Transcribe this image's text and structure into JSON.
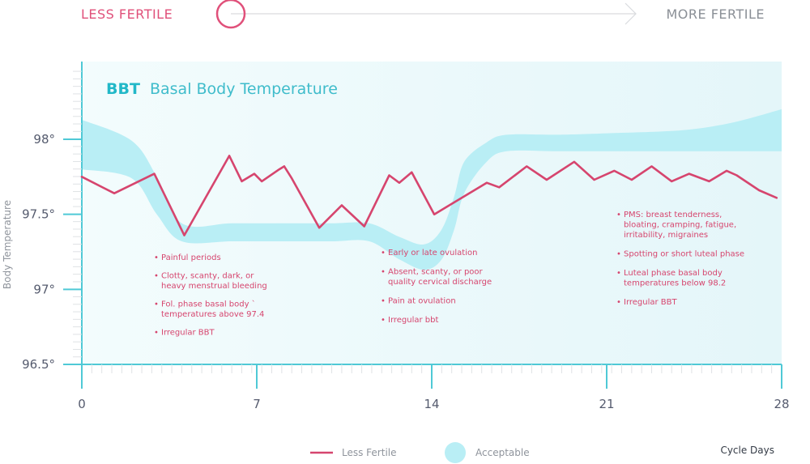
{
  "scale": {
    "left_label": "LESS FERTILE",
    "right_label": "MORE FERTILE",
    "indicator_position": 0.0,
    "left_color": "#e0507a",
    "right_color": "#8a8f96"
  },
  "chart_data": {
    "type": "line",
    "title_abbr": "BBT",
    "title": "Basal Body Temperature",
    "xlabel": "Cycle Days",
    "ylabel": "Body Temperature",
    "xlim": [
      0,
      28
    ],
    "ylim": [
      96.5,
      98.5
    ],
    "x_ticks": [
      0,
      7,
      14,
      21,
      28
    ],
    "x_tick_labels": [
      "0",
      "7",
      "14",
      "21",
      "28"
    ],
    "y_ticks": [
      96.5,
      97,
      97.5,
      98
    ],
    "y_tick_labels": [
      "96.5°",
      "97°",
      "97.5°",
      "98°"
    ],
    "series": [
      {
        "name": "Less Fertile",
        "kind": "line",
        "color": "#d6456e",
        "x": [
          0,
          1.3,
          2.9,
          4.1,
          5.9,
          6.4,
          6.9,
          7.2,
          7.9,
          8.1,
          8.4,
          9.5,
          10.4,
          11.3,
          12.3,
          12.7,
          13.2,
          14.1,
          16.2,
          16.7,
          17.8,
          18.6,
          19.7,
          20.5,
          21.3,
          22,
          22.8,
          23.6,
          24.3,
          25.1,
          25.8,
          26.2,
          27.1,
          27.8
        ],
        "y": [
          97.75,
          97.64,
          97.77,
          97.36,
          97.89,
          97.72,
          97.77,
          97.72,
          97.8,
          97.82,
          97.74,
          97.41,
          97.56,
          97.42,
          97.76,
          97.71,
          97.78,
          97.5,
          97.71,
          97.68,
          97.82,
          97.73,
          97.85,
          97.73,
          97.79,
          97.73,
          97.82,
          97.72,
          97.77,
          97.72,
          97.79,
          97.76,
          97.66,
          97.61
        ]
      },
      {
        "name": "Acceptable",
        "kind": "band",
        "color": "#b9eef5",
        "x": [
          0,
          2,
          3,
          4,
          6,
          8,
          10,
          11.5,
          12.7,
          13.7,
          14.4,
          14.9,
          15.3,
          16.2,
          17,
          19,
          21,
          24,
          26,
          28
        ],
        "upper": [
          98.13,
          97.99,
          97.75,
          97.44,
          97.44,
          97.44,
          97.44,
          97.44,
          97.35,
          97.3,
          97.4,
          97.62,
          97.85,
          97.98,
          98.03,
          98.03,
          98.04,
          98.06,
          98.11,
          98.2
        ],
        "lower": [
          97.8,
          97.74,
          97.5,
          97.32,
          97.32,
          97.32,
          97.32,
          97.32,
          97.2,
          97.13,
          97.2,
          97.4,
          97.64,
          97.85,
          97.92,
          97.92,
          97.92,
          97.92,
          97.92,
          97.92
        ]
      }
    ],
    "annotations": [
      {
        "group": "follicular",
        "items": [
          [
            "Painful periods"
          ],
          [
            "Clotty, scanty, dark, or",
            "heavy menstrual bleeding"
          ],
          [
            "Fol. phase basal body `",
            "temperatures above 97.4"
          ],
          [
            "Irregular BBT"
          ]
        ]
      },
      {
        "group": "ovulation",
        "items": [
          [
            "Early or late ovulation"
          ],
          [
            "Absent, scanty, or poor",
            "quality cervical discharge"
          ],
          [
            "Pain at ovulation"
          ],
          [
            "Irregular bbt"
          ]
        ]
      },
      {
        "group": "luteal",
        "items": [
          [
            "PMS: breast tenderness,",
            "bloating, cramping, fatigue,",
            "irritability, migraines"
          ],
          [
            "Spotting or short luteal phase"
          ],
          [
            "Luteal phase basal body",
            "temperatures below 98.2"
          ],
          [
            "Irregular BBT"
          ]
        ]
      }
    ],
    "legend": [
      {
        "name": "Less Fertile",
        "kind": "line",
        "color": "#d6456e"
      },
      {
        "name": "Acceptable",
        "kind": "circle",
        "color": "#b9eef5"
      }
    ],
    "legend_position": "bottom",
    "grid": false
  }
}
